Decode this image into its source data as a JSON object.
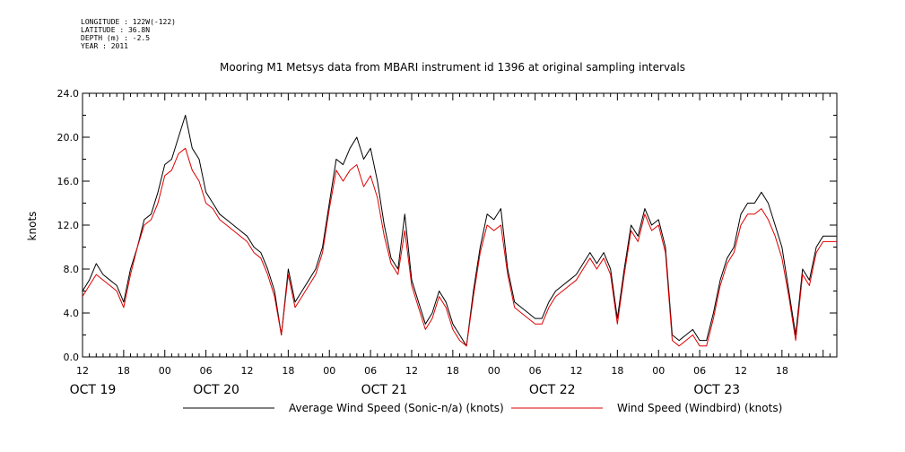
{
  "metadata": {
    "longitude": "LONGITUDE : 122W(-122)",
    "latitude": "LATITUDE : 36.8N",
    "depth": "DEPTH (m) : -2.5",
    "year": "YEAR : 2011"
  },
  "chart_data": {
    "type": "line",
    "title": "Mooring M1 Metsys data from MBARI instrument id 1396 at original sampling intervals",
    "ylabel": "knots",
    "xlabel": "",
    "ylim": [
      0,
      24
    ],
    "yticks": [
      "0.0",
      "4.0",
      "8.0",
      "12.0",
      "16.0",
      "20.0",
      "24.0"
    ],
    "xlim_hours": [
      0,
      110
    ],
    "xaxis_start": "OCT 19 12:00",
    "xticks": [
      {
        "h": 0,
        "label": "12"
      },
      {
        "h": 6,
        "label": "18"
      },
      {
        "h": 12,
        "label": "00"
      },
      {
        "h": 18,
        "label": "06"
      },
      {
        "h": 24,
        "label": "12"
      },
      {
        "h": 30,
        "label": "18"
      },
      {
        "h": 36,
        "label": "00"
      },
      {
        "h": 42,
        "label": "06"
      },
      {
        "h": 48,
        "label": "12"
      },
      {
        "h": 54,
        "label": "18"
      },
      {
        "h": 60,
        "label": "00"
      },
      {
        "h": 66,
        "label": "06"
      },
      {
        "h": 72,
        "label": "12"
      },
      {
        "h": 78,
        "label": "18"
      },
      {
        "h": 84,
        "label": "00"
      },
      {
        "h": 90,
        "label": "06"
      },
      {
        "h": 96,
        "label": "12"
      },
      {
        "h": 102,
        "label": "18"
      }
    ],
    "day_labels": [
      {
        "h": 1.5,
        "label": "OCT 19"
      },
      {
        "h": 19.5,
        "label": "OCT 20"
      },
      {
        "h": 44,
        "label": "OCT 21"
      },
      {
        "h": 68.5,
        "label": "OCT 22"
      },
      {
        "h": 92.5,
        "label": "OCT 23"
      }
    ],
    "series": [
      {
        "name": "Average Wind Speed (Sonic-n/a) (knots)",
        "color": "#000000",
        "x": [
          0,
          1,
          2,
          3,
          4,
          5,
          6,
          7,
          8,
          9,
          10,
          11,
          12,
          13,
          14,
          15,
          16,
          17,
          18,
          19,
          20,
          21,
          22,
          23,
          24,
          25,
          26,
          27,
          28,
          29,
          30,
          31,
          32,
          33,
          34,
          35,
          36,
          37,
          38,
          39,
          40,
          41,
          42,
          43,
          44,
          45,
          46,
          47,
          48,
          49,
          50,
          51,
          52,
          53,
          54,
          55,
          56,
          57,
          58,
          59,
          60,
          61,
          62,
          63,
          64,
          65,
          66,
          67,
          68,
          69,
          70,
          71,
          72,
          73,
          74,
          75,
          76,
          77,
          78,
          79,
          80,
          81,
          82,
          83,
          84,
          85,
          86,
          87,
          88,
          89,
          90,
          91,
          92,
          93,
          94,
          95,
          96,
          97,
          98,
          99,
          100,
          101,
          102,
          103,
          104,
          105,
          106,
          107,
          108,
          109,
          110
        ],
        "values": [
          6,
          7,
          8.5,
          7.5,
          7,
          6.5,
          5,
          8,
          10,
          12.5,
          13,
          15,
          17.5,
          18,
          20,
          22,
          19,
          18,
          15,
          14,
          13,
          12.5,
          12,
          11.5,
          11,
          10,
          9.5,
          8,
          6,
          2,
          8,
          5,
          6,
          7,
          8,
          10,
          14,
          18,
          17.5,
          19,
          20,
          18,
          19,
          16,
          12,
          9,
          8,
          13,
          7,
          5,
          3,
          4,
          6,
          5,
          3,
          2,
          1,
          6,
          10,
          13,
          12.5,
          13.5,
          8,
          5,
          4.5,
          4,
          3.5,
          3.5,
          5,
          6,
          6.5,
          7,
          7.5,
          8.5,
          9.5,
          8.5,
          9.5,
          8,
          3.5,
          8,
          12,
          11,
          13.5,
          12,
          12.5,
          10,
          2,
          1.5,
          2,
          2.5,
          1.5,
          1.5,
          4,
          7,
          9,
          10,
          13,
          14,
          14,
          15,
          14,
          12,
          10,
          6,
          2,
          8,
          7,
          10,
          11,
          11,
          11
        ]
      },
      {
        "name": "Wind Speed (Windbird) (knots)",
        "color": "#dd0000",
        "x": [
          0,
          1,
          2,
          3,
          4,
          5,
          6,
          7,
          8,
          9,
          10,
          11,
          12,
          13,
          14,
          15,
          16,
          17,
          18,
          19,
          20,
          21,
          22,
          23,
          24,
          25,
          26,
          27,
          28,
          29,
          30,
          31,
          32,
          33,
          34,
          35,
          36,
          37,
          38,
          39,
          40,
          41,
          42,
          43,
          44,
          45,
          46,
          47,
          48,
          49,
          50,
          51,
          52,
          53,
          54,
          55,
          56,
          57,
          58,
          59,
          60,
          61,
          62,
          63,
          64,
          65,
          66,
          67,
          68,
          69,
          70,
          71,
          72,
          73,
          74,
          75,
          76,
          77,
          78,
          79,
          80,
          81,
          82,
          83,
          84,
          85,
          86,
          87,
          88,
          89,
          90,
          91,
          92,
          93,
          94,
          95,
          96,
          97,
          98,
          99,
          100,
          101,
          102,
          103,
          104,
          105,
          106,
          107,
          108,
          109,
          110
        ],
        "values": [
          5.5,
          6.5,
          7.5,
          7,
          6.5,
          6,
          4.5,
          7.5,
          10,
          12,
          12.5,
          14,
          16.5,
          17,
          18.5,
          19,
          17,
          16,
          14,
          13.5,
          12.5,
          12,
          11.5,
          11,
          10.5,
          9.5,
          9,
          7.5,
          5.5,
          2,
          7.5,
          4.5,
          5.5,
          6.5,
          7.5,
          9.5,
          13.5,
          17,
          16,
          17,
          17.5,
          15.5,
          16.5,
          14.5,
          11,
          8.5,
          7.5,
          11.5,
          6.5,
          4.5,
          2.5,
          3.5,
          5.5,
          4.5,
          2.5,
          1.5,
          1,
          5.5,
          9.5,
          12,
          11.5,
          12,
          7.5,
          4.5,
          4,
          3.5,
          3,
          3,
          4.5,
          5.5,
          6,
          6.5,
          7,
          8,
          9,
          8,
          9,
          7.5,
          3,
          7.5,
          11.5,
          10.5,
          13,
          11.5,
          12,
          9.5,
          1.5,
          1,
          1.5,
          2,
          1,
          1,
          3.5,
          6.5,
          8.5,
          9.5,
          12,
          13,
          13,
          13.5,
          12.5,
          11,
          9,
          5.5,
          1.5,
          7.5,
          6.5,
          9.5,
          10.5,
          10.5,
          10.5
        ]
      }
    ],
    "grid": false,
    "legend_position": "bottom"
  }
}
